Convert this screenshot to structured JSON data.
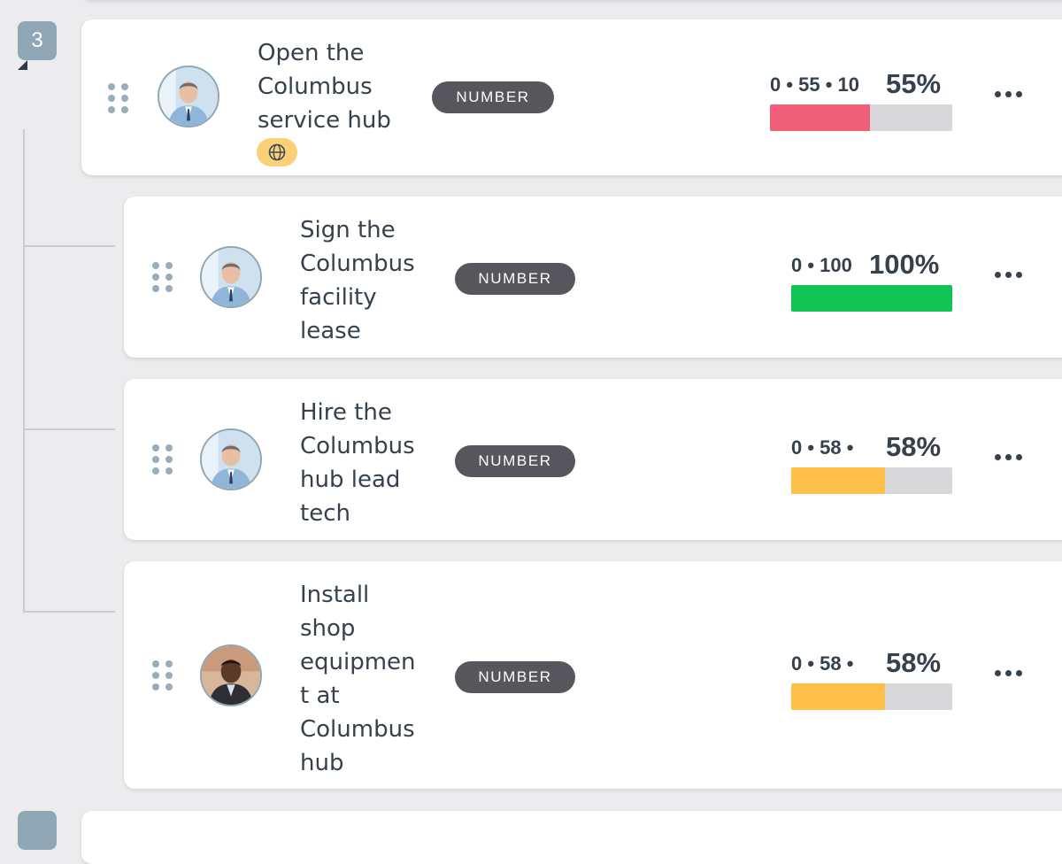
{
  "parent_number": "3",
  "rows": [
    {
      "title_lines": [
        "Open the",
        "Columbus",
        "service hub"
      ],
      "type": "NUMBER",
      "range": "0 • 55 • 10",
      "percent_label": "55%",
      "progress": 0.55,
      "bar_color": "#ef5f77",
      "has_globe": true,
      "avatar": "man-blue-shirt"
    },
    {
      "title_lines": [
        "Sign the",
        "Columbus",
        "facility",
        "lease"
      ],
      "type": "NUMBER",
      "range": "0 • 100",
      "percent_label": "100%",
      "progress": 1.0,
      "bar_color": "#12c455",
      "avatar": "man-blue-shirt"
    },
    {
      "title_lines": [
        "Hire the",
        "Columbus",
        "hub lead",
        "tech"
      ],
      "type": "NUMBER",
      "range": "0 • 58 •",
      "percent_label": "58%",
      "progress": 0.58,
      "bar_color": "#fec04a",
      "avatar": "man-blue-shirt"
    },
    {
      "title_lines": [
        "Install",
        "shop",
        "equipmen",
        "t at",
        "Columbus",
        "hub"
      ],
      "type": "NUMBER",
      "range": "0 • 58 •",
      "percent_label": "58%",
      "progress": 0.58,
      "bar_color": "#fec04a",
      "avatar": "man-dark-suit"
    }
  ],
  "icons": {
    "drag": "drag-handle-icon",
    "more": "more-horizontal-icon",
    "globe": "globe-icon"
  }
}
